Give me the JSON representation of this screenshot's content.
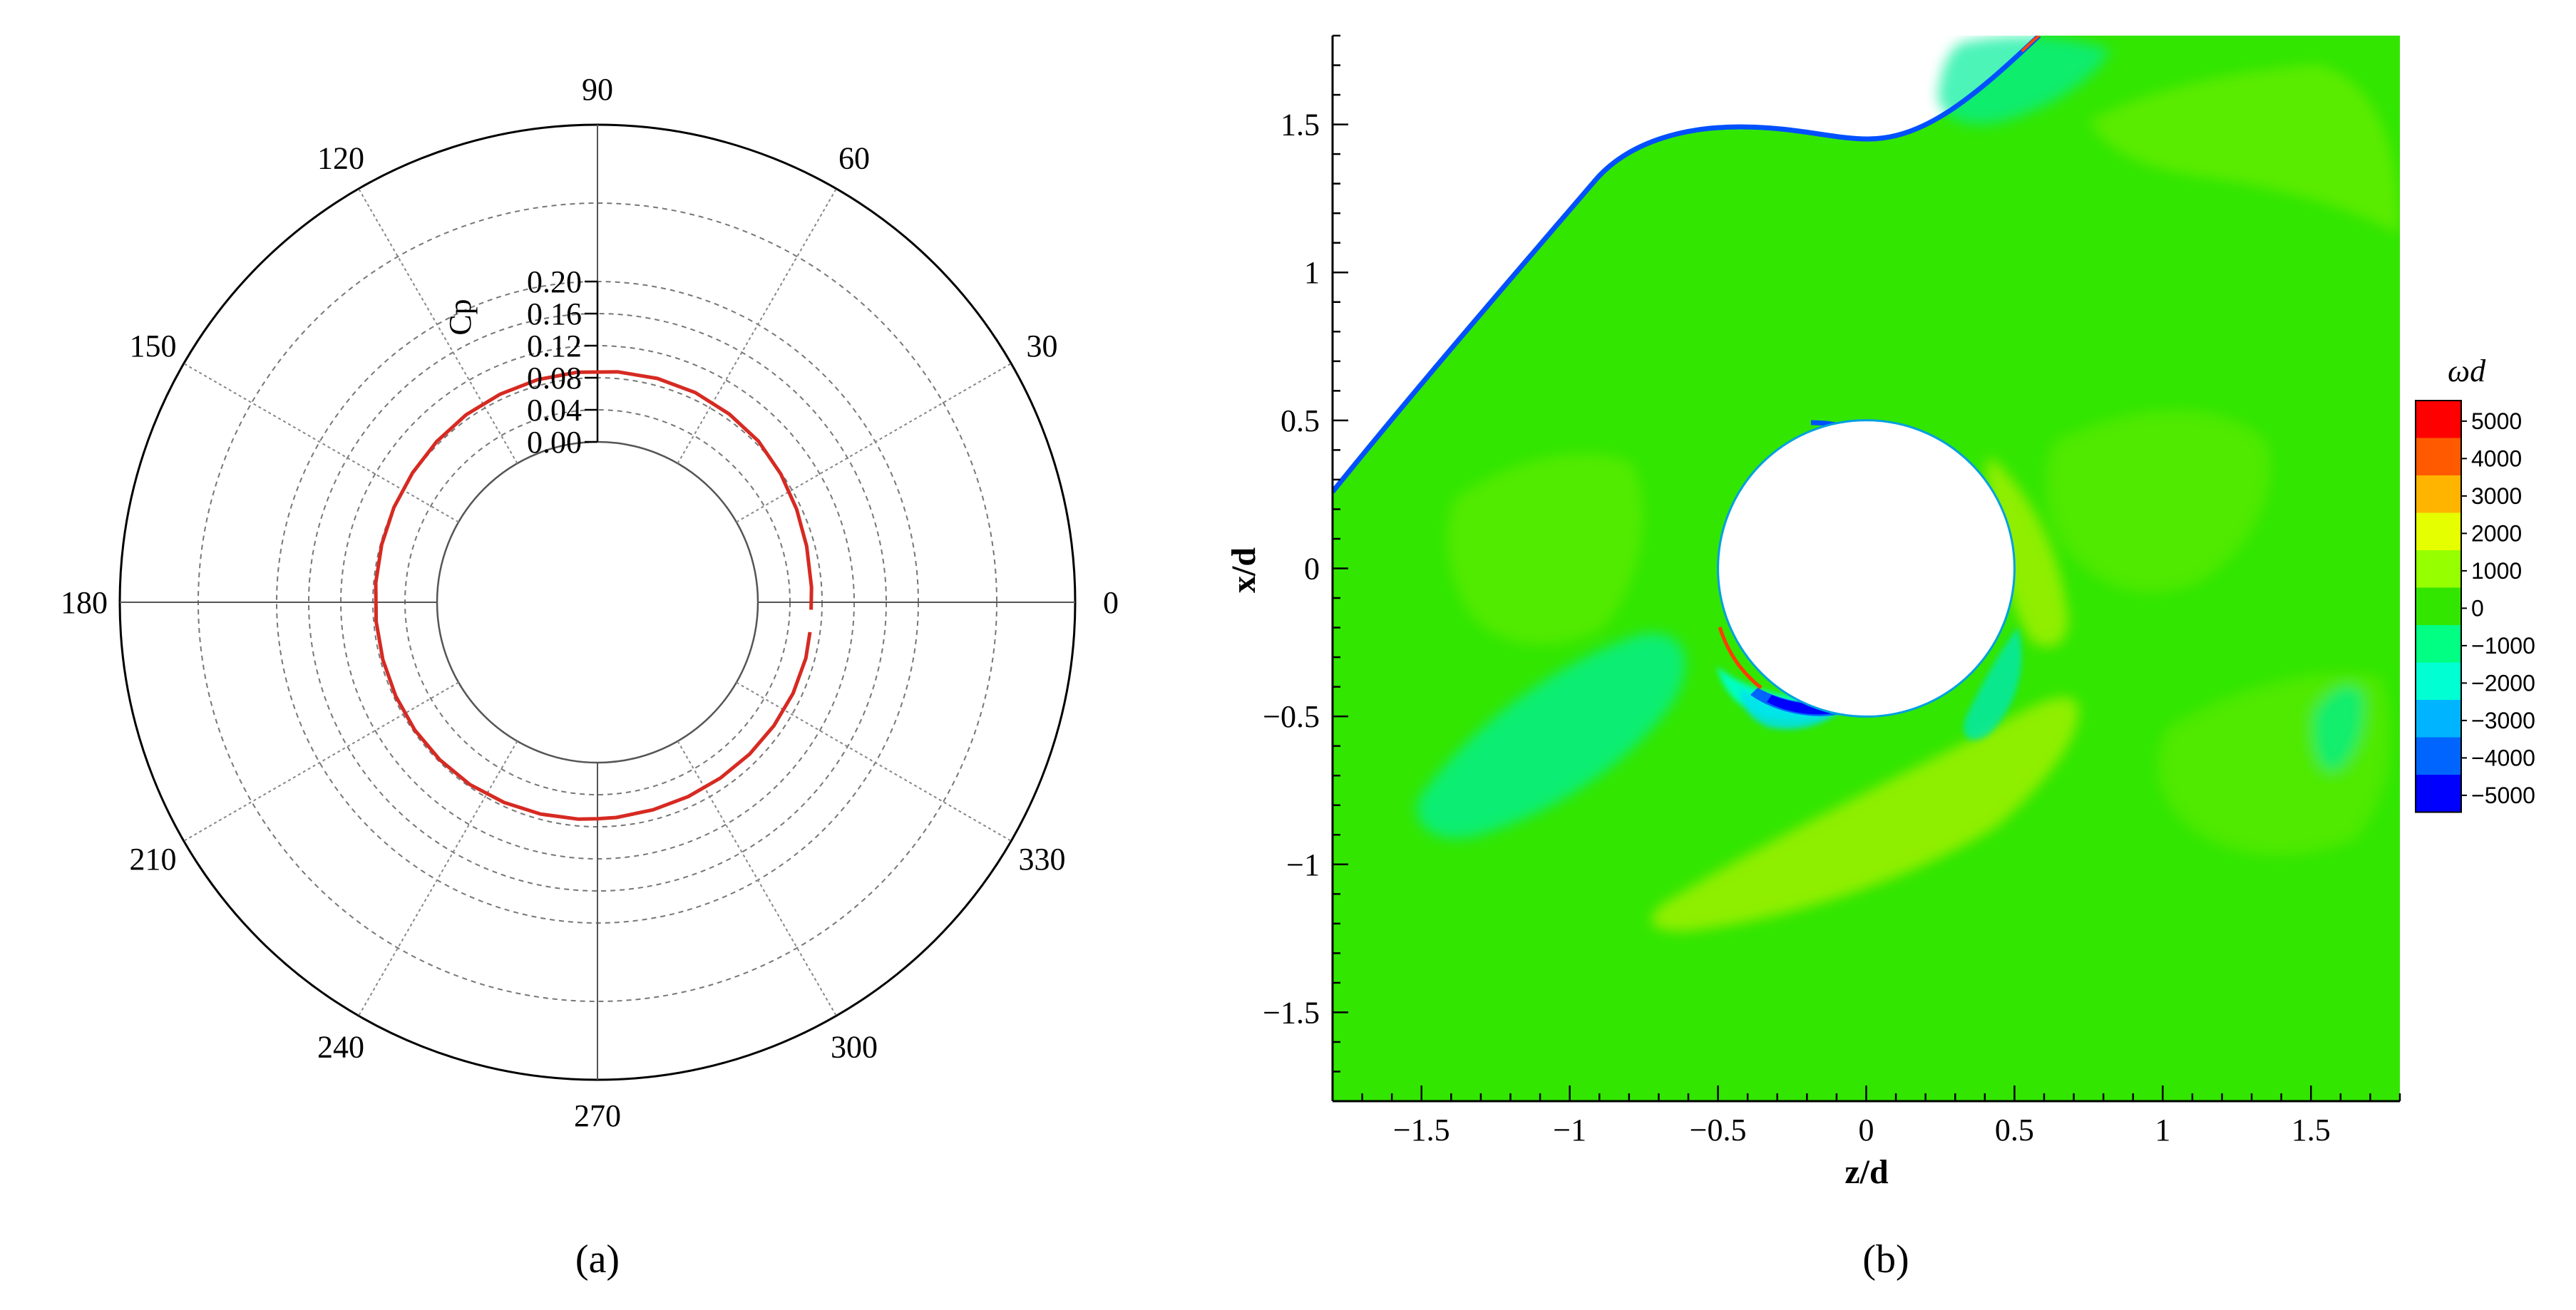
{
  "chart_data": [
    {
      "type": "line",
      "subtype": "polar",
      "title": "",
      "caption": "(a)",
      "radial_axis": {
        "label": "Cp",
        "range": [
          0.0,
          0.2
        ],
        "ticks": [
          "0.00",
          "0.04",
          "0.08",
          "0.12",
          "0.16",
          "0.20"
        ]
      },
      "angular_axis": {
        "unit": "deg",
        "ticks": [
          "0",
          "30",
          "60",
          "90",
          "120",
          "150",
          "180",
          "210",
          "240",
          "270",
          "300",
          "330"
        ]
      },
      "grid": true,
      "series": [
        {
          "color": "#d62a22",
          "points": [
            {
              "theta": 358,
              "r": 0.0665
            },
            {
              "theta": 4,
              "r": 0.0675
            },
            {
              "theta": 15,
              "r": 0.07
            },
            {
              "theta": 25,
              "r": 0.074
            },
            {
              "theta": 35,
              "r": 0.079
            },
            {
              "theta": 45,
              "r": 0.084
            },
            {
              "theta": 55,
              "r": 0.0865
            },
            {
              "theta": 65,
              "r": 0.0885
            },
            {
              "theta": 75,
              "r": 0.089
            },
            {
              "theta": 85,
              "r": 0.0885
            },
            {
              "theta": 95,
              "r": 0.088
            },
            {
              "theta": 105,
              "r": 0.0875
            },
            {
              "theta": 115,
              "r": 0.0865
            },
            {
              "theta": 125,
              "r": 0.0855
            },
            {
              "theta": 135,
              "r": 0.0835
            },
            {
              "theta": 145,
              "r": 0.0815
            },
            {
              "theta": 155,
              "r": 0.08
            },
            {
              "theta": 165,
              "r": 0.0785
            },
            {
              "theta": 175,
              "r": 0.0775
            },
            {
              "theta": 185,
              "r": 0.077
            },
            {
              "theta": 195,
              "r": 0.077
            },
            {
              "theta": 205,
              "r": 0.0775
            },
            {
              "theta": 215,
              "r": 0.078
            },
            {
              "theta": 225,
              "r": 0.078
            },
            {
              "theta": 235,
              "r": 0.0775
            },
            {
              "theta": 245,
              "r": 0.0755
            },
            {
              "theta": 255,
              "r": 0.0735
            },
            {
              "theta": 265,
              "r": 0.0715
            },
            {
              "theta": 270,
              "r": 0.07
            },
            {
              "theta": 275,
              "r": 0.0695
            },
            {
              "theta": 285,
              "r": 0.068
            },
            {
              "theta": 295,
              "r": 0.0675
            },
            {
              "theta": 305,
              "r": 0.0675
            },
            {
              "theta": 315,
              "r": 0.068
            },
            {
              "theta": 325,
              "r": 0.0685
            },
            {
              "theta": 335,
              "r": 0.069
            },
            {
              "theta": 345,
              "r": 0.069
            },
            {
              "theta": 352,
              "r": 0.0675
            }
          ]
        }
      ]
    },
    {
      "type": "heatmap",
      "subtype": "contour",
      "title": "",
      "caption": "(b)",
      "xlabel": "z/d",
      "ylabel": "x/d",
      "xlim": [
        -1.8,
        1.8
      ],
      "ylim": [
        -1.8,
        1.8
      ],
      "xticks": [
        "−1.5",
        "−1",
        "−0.5",
        "0",
        "0.5",
        "1",
        "1.5"
      ],
      "yticks": [
        "1.5",
        "1",
        "0.5",
        "0",
        "−0.5",
        "−1",
        "−1.5"
      ],
      "cylinder": {
        "center": [
          0,
          0
        ],
        "radius": 0.5
      },
      "colorbar": {
        "title": "ωd",
        "levels": [
          "5000",
          "4000",
          "3000",
          "2000",
          "1000",
          "0",
          "−1000",
          "−2000",
          "−3000",
          "−4000",
          "−5000"
        ],
        "colors": [
          "#ff0000",
          "#ff5a00",
          "#ffb400",
          "#e6ff00",
          "#96ff00",
          "#32e600",
          "#00ff82",
          "#00ffd2",
          "#00b4ff",
          "#0064ff",
          "#0000ff"
        ]
      }
    }
  ]
}
